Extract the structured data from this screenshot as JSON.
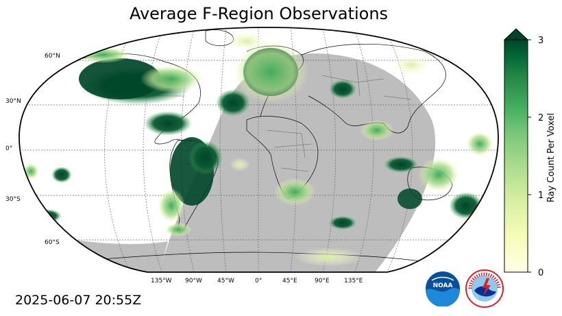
{
  "title": "Average F-Region Observations",
  "timestamp": "2025-06-07 20:55Z",
  "map": {
    "projection": "Robinson",
    "night_shade_color": "#bdbdbd",
    "lat_labels": [
      "60°N",
      "30°N",
      "0°",
      "30°S",
      "60°S"
    ],
    "lon_labels": [
      "135°W",
      "90°W",
      "45°W",
      "0°",
      "45°E",
      "90°E",
      "135°E"
    ]
  },
  "colorbar": {
    "label": "Ray Count Per Voxel",
    "ticks": [
      "0",
      "1",
      "2",
      "3"
    ],
    "range": [
      0,
      3
    ],
    "extend": "max",
    "colormap": "YlGn",
    "color_low": "#ffffe5",
    "color_high": "#004529"
  },
  "logos": {
    "noaa": {
      "text": "NOAA",
      "color": "#0a4f9c"
    },
    "nws": {
      "text": "NATIONAL WEATHER SERVICE",
      "color": "#d6202a"
    }
  }
}
